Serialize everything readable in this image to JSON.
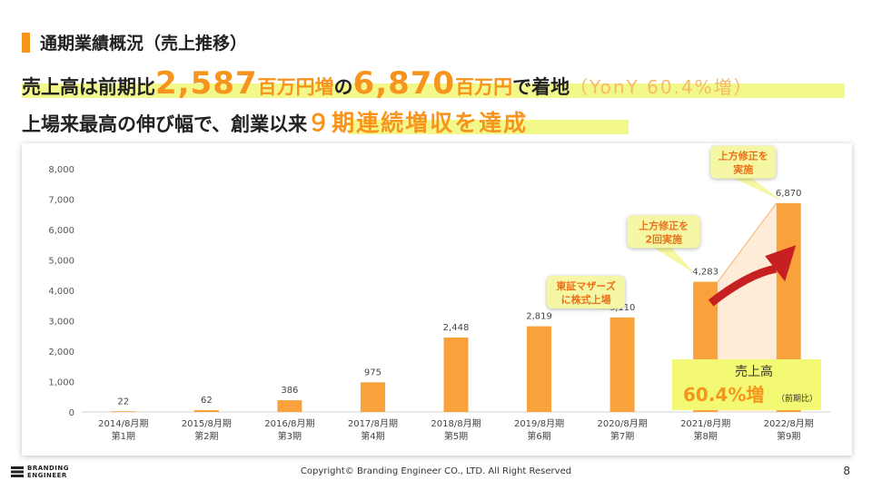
{
  "slide": {
    "title": "通期業績概況（売上推移）",
    "line1": {
      "p1": "売上高は前期比",
      "n1": "2,587",
      "u1": "百万円増",
      "p2": "の",
      "n2": "6,870",
      "u2": "百万円",
      "p3": "で着地",
      "p4": "（YonY 60.4%増）"
    },
    "line2": {
      "p1": "上場来最高の伸び幅で、創業以来",
      "p2": "９期連続増収を達成"
    },
    "footer": "Copyright© Branding Engineer CO., LTD. All Right Reserved",
    "page_number": "8",
    "logo": {
      "line1": "BRANDING",
      "line2": "ENGINEER"
    }
  },
  "chart_data": {
    "type": "bar",
    "categories": [
      [
        "2014/8月期",
        "第1期"
      ],
      [
        "2015/8月期",
        "第2期"
      ],
      [
        "2016/8月期",
        "第3期"
      ],
      [
        "2017/8月期",
        "第4期"
      ],
      [
        "2018/8月期",
        "第5期"
      ],
      [
        "2019/8月期",
        "第6期"
      ],
      [
        "2020/8月期",
        "第7期"
      ],
      [
        "2021/8月期",
        "第8期"
      ],
      [
        "2022/8月期",
        "第9期"
      ]
    ],
    "values": [
      22,
      62,
      386,
      975,
      2448,
      2819,
      3110,
      4283,
      6870
    ],
    "value_labels": [
      "22",
      "62",
      "386",
      "975",
      "2,448",
      "2,819",
      "3,110",
      "4,283",
      "6,870"
    ],
    "ylim": [
      0,
      8000
    ],
    "yticks": [
      0,
      1000,
      2000,
      3000,
      4000,
      5000,
      6000,
      7000,
      8000
    ],
    "ytick_labels": [
      "0",
      "1,000",
      "2,000",
      "3,000",
      "4,000",
      "5,000",
      "6,000",
      "7,000",
      "8,000"
    ],
    "grid": false,
    "bar_color": "#f9a23c",
    "callouts": [
      {
        "category_index": 6,
        "lines": [
          "東証マザーズ",
          "に株式上場"
        ]
      },
      {
        "category_index": 7,
        "lines": [
          "上方修正を",
          "2回実施"
        ]
      },
      {
        "category_index": 8,
        "lines": [
          "上方修正を",
          "実施"
        ]
      }
    ],
    "growth_box": {
      "label": "売上高",
      "value": "60.4%増",
      "note": "（前期比）"
    }
  }
}
